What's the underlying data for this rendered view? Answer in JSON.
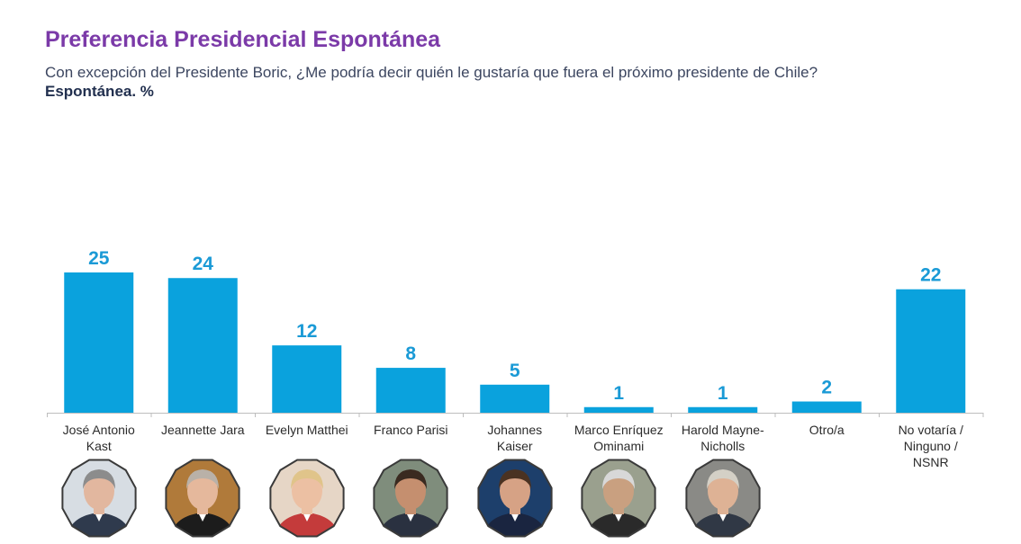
{
  "header": {
    "title": "Preferencia Presidencial Espontánea",
    "question": "Con excepción del Presidente Boric, ¿Me podría decir quién le gustaría que fuera el próximo presidente de Chile?",
    "measure": "Espontánea. %"
  },
  "colors": {
    "title": "#7b3aa8",
    "bar": "#0aa2dd",
    "label": "#1a9ad6",
    "axis": "#bdbdbd",
    "text": "#2b2b2b"
  },
  "chart_data": {
    "type": "bar",
    "title": "Preferencia Presidencial Espontánea",
    "xlabel": "",
    "ylabel": "",
    "ylim": [
      0,
      25
    ],
    "categories": [
      [
        "José Antonio",
        "Kast"
      ],
      [
        "Jeannette Jara"
      ],
      [
        "Evelyn Matthei"
      ],
      [
        "Franco Parisi"
      ],
      [
        "Johannes",
        "Kaiser"
      ],
      [
        "Marco Enríquez",
        "Ominami"
      ],
      [
        "Harold Mayne-",
        "Nicholls"
      ],
      [
        "Otro/a"
      ],
      [
        "No votaría /",
        "Ninguno /",
        "NSNR"
      ]
    ],
    "values": [
      25,
      24,
      12,
      8,
      5,
      1,
      1,
      2,
      22
    ],
    "data_labels": true,
    "grid": false
  },
  "portraits": [
    {
      "icon": "person-photo-kast",
      "skin": "#e2b79f",
      "hair": "#8c8c8c",
      "bg": "#d7dde3",
      "suit": "#2f3a4d"
    },
    {
      "icon": "person-photo-jara",
      "skin": "#e5b89c",
      "hair": "#b9b1a8",
      "bg": "#b07a3a",
      "suit": "#1c1c1c"
    },
    {
      "icon": "person-photo-matthei",
      "skin": "#ecc0a3",
      "hair": "#e0c48a",
      "bg": "#e6d6c6",
      "suit": "#c43b3b"
    },
    {
      "icon": "person-photo-parisi",
      "skin": "#c58f6f",
      "hair": "#3a2a20",
      "bg": "#7f8d7c",
      "suit": "#2a3140"
    },
    {
      "icon": "person-photo-kaiser",
      "skin": "#d6a285",
      "hair": "#4a3222",
      "bg": "#1d3f6b",
      "suit": "#1a2540"
    },
    {
      "icon": "person-photo-enriquez-ominami",
      "skin": "#c9a080",
      "hair": "#d8d8d8",
      "bg": "#9aa08e",
      "suit": "#2a2a2a"
    },
    {
      "icon": "person-photo-mayne-nicholls",
      "skin": "#deb295",
      "hair": "#d4d0c6",
      "bg": "#8a8a86",
      "suit": "#303845"
    }
  ]
}
